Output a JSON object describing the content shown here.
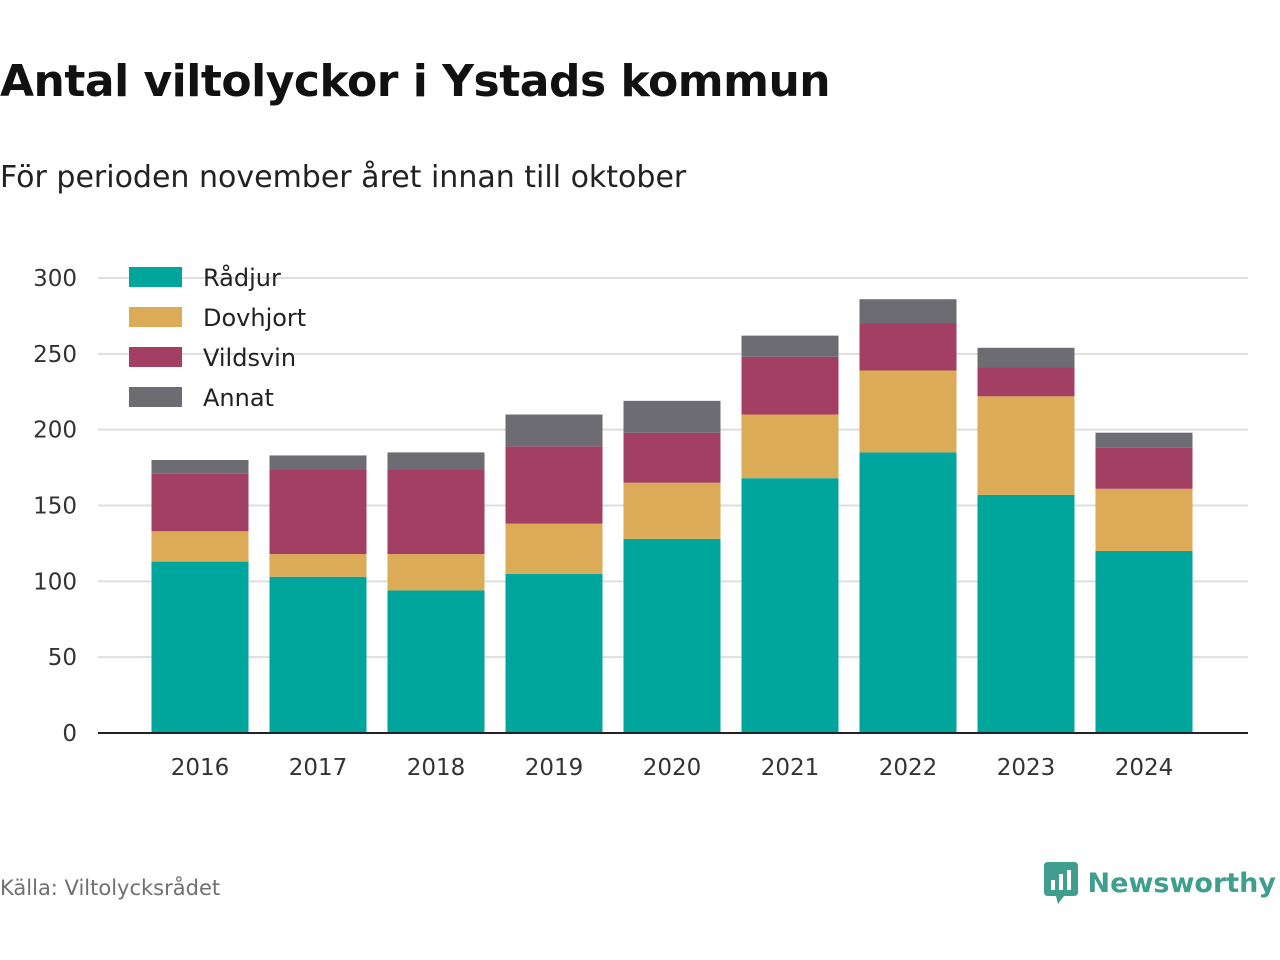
{
  "title": "Antal viltolyckor i Ystads kommun",
  "subtitle": "För perioden november året innan till oktober",
  "source": "Källa: Viltolycksrådet",
  "brand": {
    "name": "Newsworthy",
    "icon": "newsworthy-logo-icon",
    "color": "#3f9e8e"
  },
  "chart_data": {
    "type": "bar",
    "stacked": true,
    "title": "Antal viltolyckor i Ystads kommun",
    "subtitle": "För perioden november året innan till oktober",
    "xlabel": "",
    "ylabel": "",
    "categories": [
      "2016",
      "2017",
      "2018",
      "2019",
      "2020",
      "2021",
      "2022",
      "2023",
      "2024"
    ],
    "ylim": [
      0,
      300
    ],
    "yticks": [
      0,
      50,
      100,
      150,
      200,
      250,
      300
    ],
    "grid": true,
    "legend_position": "top-left",
    "series": [
      {
        "name": "Rådjur",
        "color": "#00a69c",
        "values": [
          113,
          103,
          94,
          105,
          128,
          168,
          185,
          157,
          120
        ]
      },
      {
        "name": "Dovhjort",
        "color": "#dbab57",
        "values": [
          20,
          15,
          24,
          33,
          37,
          42,
          54,
          65,
          41
        ]
      },
      {
        "name": "Vildsvin",
        "color": "#a43f64",
        "values": [
          38,
          56,
          56,
          51,
          33,
          38,
          31,
          19,
          27
        ]
      },
      {
        "name": "Annat",
        "color": "#6e6c73",
        "values": [
          9,
          9,
          11,
          21,
          21,
          14,
          16,
          13,
          10
        ]
      }
    ]
  }
}
